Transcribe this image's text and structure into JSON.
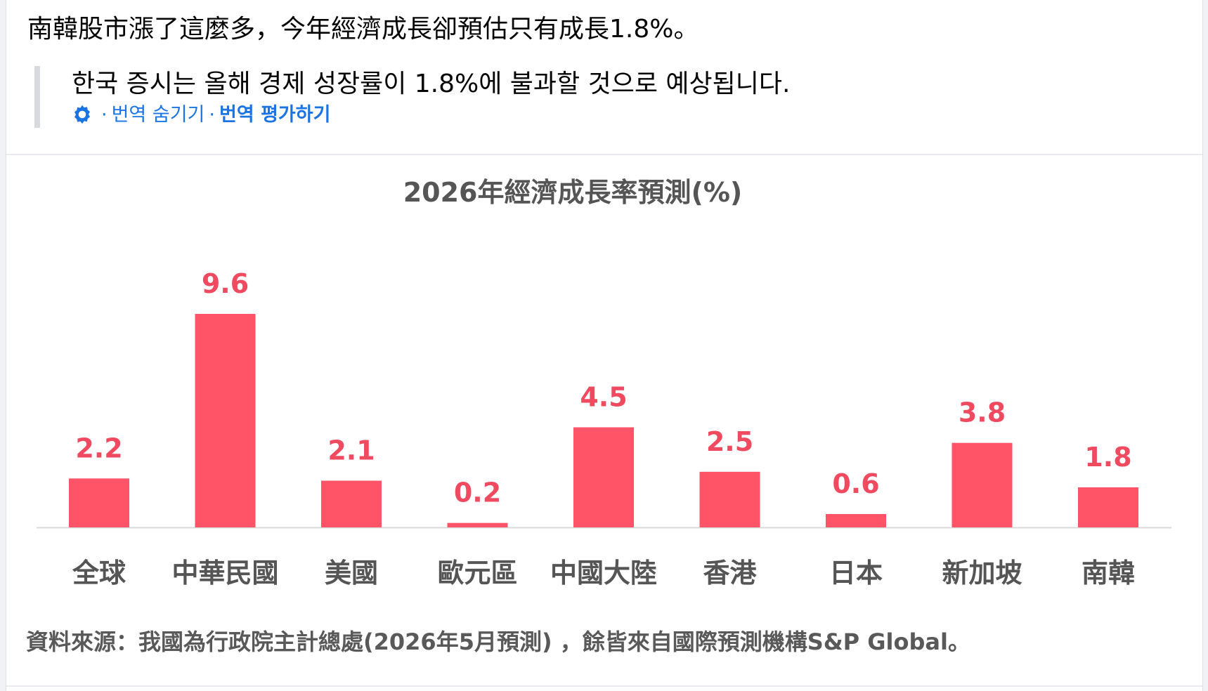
{
  "post": {
    "text": "南韓股市漲了這麼多，今年經濟成長卻預估只有成長1.8%。"
  },
  "translation": {
    "text": "한국 증시는 올해 경제 성장률이 1.8%에 불과할 것으로 예상됩니다.",
    "separator": "·",
    "hide_label": "번역 숨기기",
    "rate_label": "번역 평가하기",
    "icon": "gear-icon"
  },
  "chart_image": {
    "source_note": "資料來源：我國為行政院主計總處(2026年5月預測) ，餘皆來自國際預測機構S&P Global。"
  },
  "colors": {
    "bar": "#ff5467",
    "label": "#f04a60",
    "link": "#1b74e4"
  },
  "chart_data": {
    "type": "bar",
    "title": "2026年經濟成長率預測(%)",
    "categories": [
      "全球",
      "中華民國",
      "美國",
      "歐元區",
      "中國大陸",
      "香港",
      "日本",
      "新加坡",
      "南韓"
    ],
    "values": [
      2.2,
      9.6,
      2.1,
      0.2,
      4.5,
      2.5,
      0.6,
      3.8,
      1.8
    ],
    "value_labels": [
      "2.2",
      "9.6",
      "2.1",
      "0.2",
      "4.5",
      "2.5",
      "0.6",
      "3.8",
      "1.8"
    ],
    "xlabel": "",
    "ylabel": "",
    "ylim": [
      0,
      9.6
    ],
    "grid": false,
    "legend": "none"
  }
}
